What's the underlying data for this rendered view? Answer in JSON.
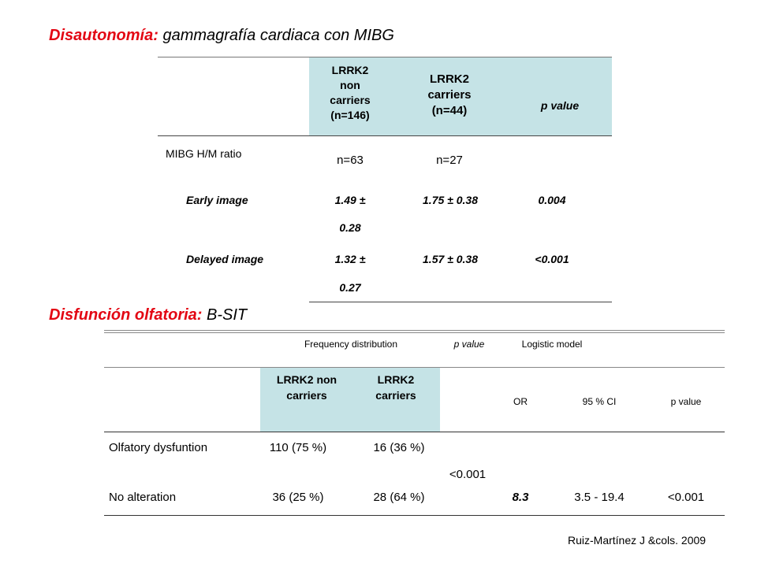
{
  "section1": {
    "title_red": "Disautonomía:",
    "title_rest": " gammagrafía cardiaca con MIBG",
    "header": {
      "col_noncarriers": [
        "LRRK2",
        "non",
        "carriers",
        "(n=146)"
      ],
      "col_carriers": [
        "LRRK2",
        "carriers",
        "(n=44)"
      ],
      "col_p": "p value"
    },
    "rows": [
      {
        "label": "MIBG H/M ratio",
        "noncarriers": "n=63",
        "carriers": "n=27",
        "p": ""
      },
      {
        "label": "Early image",
        "noncarriers_1": "1.49 ±",
        "noncarriers_2": "0.28",
        "carriers": "1.75 ± 0.38",
        "p": "0.004"
      },
      {
        "label": "Delayed image",
        "noncarriers_1": "1.32 ±",
        "noncarriers_2": "0.27",
        "carriers": "1.57 ± 0.38",
        "p": "<0.001"
      }
    ]
  },
  "section2": {
    "title_red": "Disfunción olfatoria:",
    "title_rest": " B-SIT",
    "group_headers": {
      "frequency": "Frequency distribution",
      "p_value": "p value",
      "logistic": "Logistic model"
    },
    "sub_headers": {
      "noncarriers": [
        "LRRK2 non",
        "carriers"
      ],
      "carriers": [
        "LRRK2",
        "carriers"
      ],
      "or": "OR",
      "ci": "95 % CI",
      "p": "p value"
    },
    "rows": [
      {
        "label": "Olfatory dysfuntion",
        "noncarriers": "110 (75 %)",
        "carriers": "16 (36 %)"
      },
      {
        "label": "No alteration",
        "noncarriers": "36 (25 %)",
        "carriers": "28 (64 %)",
        "or": "8.3",
        "ci": "3.5 - 19.4",
        "p": "<0.001"
      }
    ],
    "p_value_merged": "<0.001"
  },
  "citation": "Ruiz-Martínez J &cols. 2009"
}
